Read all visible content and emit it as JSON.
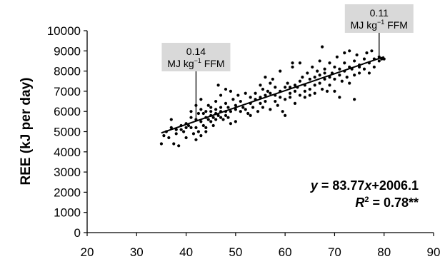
{
  "chart_data": {
    "type": "scatter",
    "ylabel": "REE (kJ per day)",
    "xlabel": "",
    "xlim": [
      20,
      90
    ],
    "ylim": [
      0,
      10000
    ],
    "x_ticks": [
      20,
      30,
      40,
      50,
      60,
      70,
      80,
      90
    ],
    "y_ticks": [
      0,
      1000,
      2000,
      3000,
      4000,
      5000,
      6000,
      7000,
      8000,
      9000,
      10000
    ],
    "grid": false,
    "trendline": {
      "slope": 83.77,
      "intercept": 2006.1,
      "x_range": [
        35,
        80
      ]
    },
    "equation": {
      "y_prefix": "y",
      "y_rest": " = 83.77",
      "x_var": "x",
      "tail": "+2006.1"
    },
    "r2": {
      "r": "R",
      "sup": "2",
      "rest": " = 0.78**"
    },
    "annotations": [
      {
        "line1": "0.14",
        "line2_main": "MJ kg",
        "line2_sup": "−1",
        "line2_tail": " FFM",
        "x": 42
      },
      {
        "line1": "0.11",
        "line2_main": "MJ kg",
        "line2_sup": "−1",
        "line2_tail": " FFM",
        "x": 79
      }
    ],
    "points": [
      [
        35,
        4400
      ],
      [
        35.5,
        4800
      ],
      [
        36,
        5000
      ],
      [
        36.5,
        4700
      ],
      [
        37,
        5200
      ],
      [
        37,
        5600
      ],
      [
        37.5,
        4400
      ],
      [
        38,
        4900
      ],
      [
        38,
        5100
      ],
      [
        38.5,
        4300
      ],
      [
        39,
        5100
      ],
      [
        39,
        5300
      ],
      [
        39.5,
        5000
      ],
      [
        40,
        5200
      ],
      [
        40,
        4700
      ],
      [
        40,
        5400
      ],
      [
        40.5,
        5300
      ],
      [
        41,
        5200
      ],
      [
        41,
        5700
      ],
      [
        41,
        6000
      ],
      [
        41.5,
        4900
      ],
      [
        42,
        5200
      ],
      [
        42,
        5600
      ],
      [
        42,
        4600
      ],
      [
        42,
        6300
      ],
      [
        42.5,
        5900
      ],
      [
        42.5,
        5000
      ],
      [
        43,
        5500
      ],
      [
        43,
        6100
      ],
      [
        43,
        6600
      ],
      [
        43,
        4800
      ],
      [
        43.5,
        5300
      ],
      [
        43.5,
        5900
      ],
      [
        44,
        5200
      ],
      [
        44,
        5700
      ],
      [
        44,
        6000
      ],
      [
        44,
        5000
      ],
      [
        44.5,
        5600
      ],
      [
        44.5,
        6300
      ],
      [
        45,
        5500
      ],
      [
        45,
        6000
      ],
      [
        45,
        5800
      ],
      [
        45,
        6200
      ],
      [
        45.5,
        5700
      ],
      [
        45.5,
        5300
      ],
      [
        46,
        5900
      ],
      [
        46,
        6100
      ],
      [
        46,
        5600
      ],
      [
        46,
        6500
      ],
      [
        46.5,
        5800
      ],
      [
        46.5,
        7300
      ],
      [
        47,
        6000
      ],
      [
        47,
        5700
      ],
      [
        47,
        6200
      ],
      [
        47,
        6800
      ],
      [
        47.5,
        5600
      ],
      [
        48,
        6000
      ],
      [
        48,
        5800
      ],
      [
        48,
        6400
      ],
      [
        48,
        7100
      ],
      [
        48.5,
        6200
      ],
      [
        48.5,
        5700
      ],
      [
        49,
        6000
      ],
      [
        49,
        7000
      ],
      [
        49,
        5400
      ],
      [
        49.5,
        6600
      ],
      [
        50,
        6100
      ],
      [
        50,
        6300
      ],
      [
        50,
        5500
      ],
      [
        50.5,
        6800
      ],
      [
        51,
        6000
      ],
      [
        51,
        6500
      ],
      [
        51.5,
        6200
      ],
      [
        52,
        6100
      ],
      [
        52,
        6900
      ],
      [
        52.5,
        5900
      ],
      [
        53,
        6400
      ],
      [
        53,
        6700
      ],
      [
        53,
        5800
      ],
      [
        53.5,
        6200
      ],
      [
        54,
        6900
      ],
      [
        54,
        6600
      ],
      [
        54.5,
        6000
      ],
      [
        55,
        6400
      ],
      [
        55,
        6700
      ],
      [
        55,
        7300
      ],
      [
        55.5,
        6200
      ],
      [
        55.5,
        7100
      ],
      [
        56,
        6800
      ],
      [
        56,
        7700
      ],
      [
        56,
        6500
      ],
      [
        56.5,
        7000
      ],
      [
        57,
        6900
      ],
      [
        57,
        7400
      ],
      [
        57,
        6100
      ],
      [
        57.5,
        7600
      ],
      [
        58,
        6500
      ],
      [
        58,
        7200
      ],
      [
        58,
        6800
      ],
      [
        58.5,
        6300
      ],
      [
        59,
        7000
      ],
      [
        59,
        6700
      ],
      [
        59,
        8000
      ],
      [
        59.5,
        6000
      ],
      [
        60,
        6600
      ],
      [
        60,
        7200
      ],
      [
        60,
        5800
      ],
      [
        60.5,
        7400
      ],
      [
        61,
        6700
      ],
      [
        61,
        7200
      ],
      [
        61,
        6900
      ],
      [
        61.5,
        8200
      ],
      [
        61.5,
        8400
      ],
      [
        62,
        6400
      ],
      [
        62,
        7300
      ],
      [
        62,
        7000
      ],
      [
        62.5,
        7200
      ],
      [
        63,
        6800
      ],
      [
        63,
        7500
      ],
      [
        63,
        8400
      ],
      [
        63.5,
        7700
      ],
      [
        64,
        7000
      ],
      [
        64,
        7300
      ],
      [
        64,
        6700
      ],
      [
        64.5,
        7900
      ],
      [
        65,
        7100
      ],
      [
        65,
        7600
      ],
      [
        65,
        6800
      ],
      [
        65.5,
        8200
      ],
      [
        66,
        7300
      ],
      [
        66,
        7700
      ],
      [
        66,
        6900
      ],
      [
        66.5,
        8000
      ],
      [
        67,
        7400
      ],
      [
        67,
        7800
      ],
      [
        67,
        8500
      ],
      [
        67.5,
        9200
      ],
      [
        67.5,
        7100
      ],
      [
        68,
        7600
      ],
      [
        68,
        8100
      ],
      [
        68,
        7900
      ],
      [
        68.5,
        7000
      ],
      [
        69,
        7700
      ],
      [
        69,
        8400
      ],
      [
        69,
        7300
      ],
      [
        69.5,
        7900
      ],
      [
        70,
        7600
      ],
      [
        70,
        8200
      ],
      [
        70,
        7000
      ],
      [
        70.5,
        8700
      ],
      [
        71,
        7800
      ],
      [
        71,
        8100
      ],
      [
        71,
        6700
      ],
      [
        71.5,
        7500
      ],
      [
        72,
        8000
      ],
      [
        72,
        8400
      ],
      [
        72,
        8900
      ],
      [
        72.5,
        7700
      ],
      [
        73,
        8200
      ],
      [
        73,
        7400
      ],
      [
        73,
        9000
      ],
      [
        73.5,
        8100
      ],
      [
        74,
        7800
      ],
      [
        74,
        6600
      ],
      [
        74,
        8500
      ],
      [
        74.5,
        8800
      ],
      [
        75,
        7900
      ],
      [
        75,
        8300
      ],
      [
        75,
        8200
      ],
      [
        76,
        8100
      ],
      [
        76,
        8600
      ],
      [
        76.5,
        8900
      ],
      [
        77,
        7900
      ],
      [
        77,
        8400
      ],
      [
        77.5,
        9000
      ],
      [
        78,
        8600
      ],
      [
        78,
        8200
      ],
      [
        79,
        8700
      ],
      [
        79,
        8500
      ],
      [
        79.5,
        8600
      ],
      [
        80,
        8600
      ]
    ]
  }
}
